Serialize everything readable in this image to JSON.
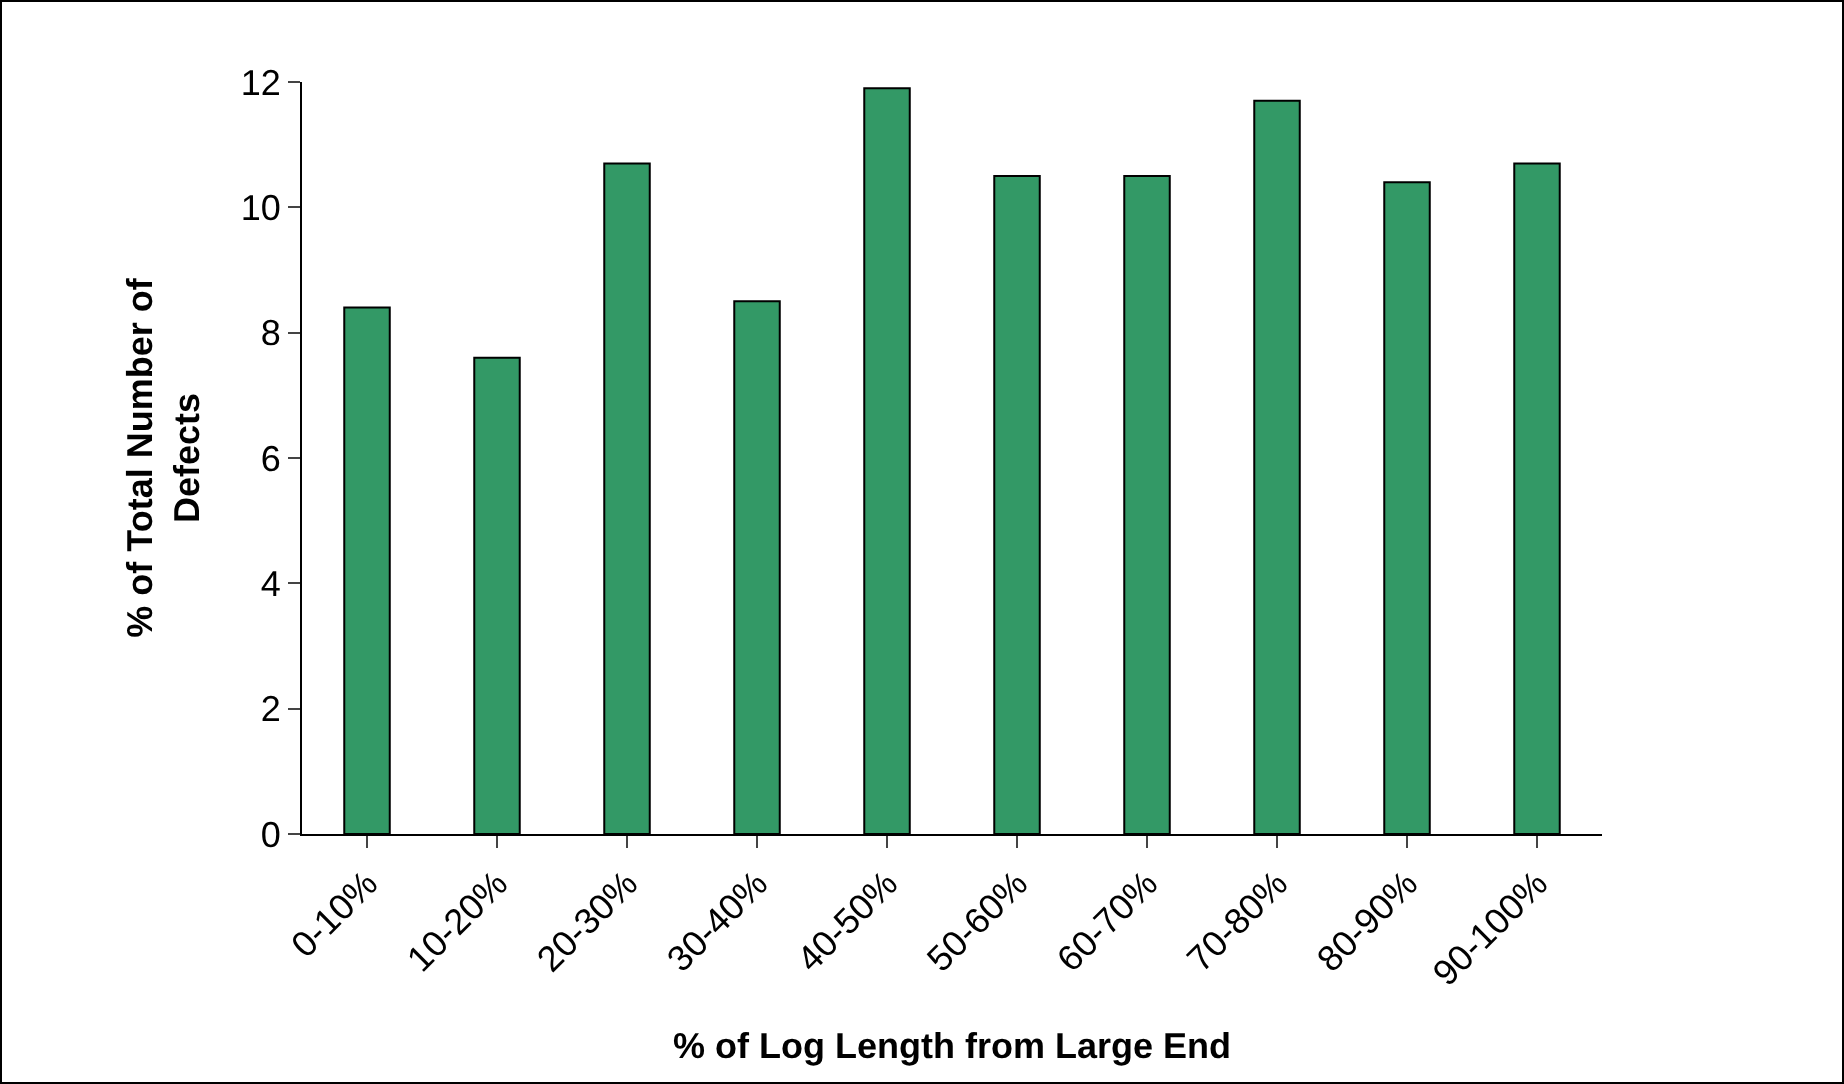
{
  "chart_data": {
    "type": "bar",
    "xlabel": "% of Log Length from Large End",
    "ylabel": "% of Total Number of Defects",
    "categories": [
      "0-10%",
      "10-20%",
      "20-30%",
      "30-40%",
      "40-50%",
      "50-60%",
      "60-70%",
      "70-80%",
      "80-90%",
      "90-100%"
    ],
    "values": [
      8.4,
      7.6,
      10.7,
      8.5,
      11.9,
      10.5,
      10.5,
      11.7,
      10.4,
      10.7
    ],
    "color": "#339966",
    "ylim": [
      0,
      12
    ],
    "yticks": [
      0,
      2,
      4,
      6,
      8,
      10,
      12
    ],
    "grid": false,
    "legend": false
  }
}
